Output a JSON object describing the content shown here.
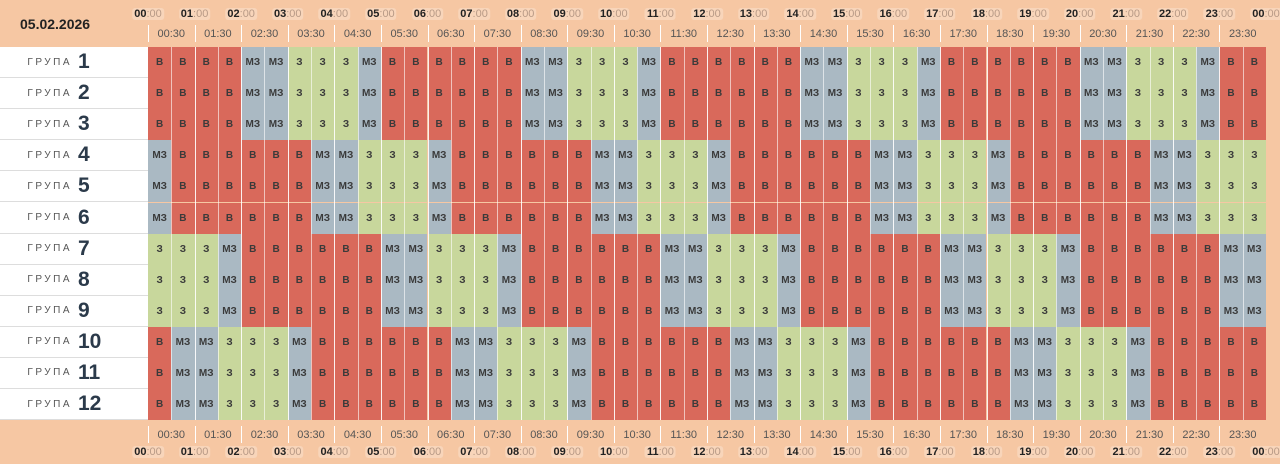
{
  "date": "05.02.2026",
  "group_word": "ГРУПА",
  "groups": [
    "1",
    "2",
    "3",
    "4",
    "5",
    "6",
    "7",
    "8",
    "9",
    "10",
    "11",
    "12"
  ],
  "hours": [
    "00",
    "01",
    "02",
    "03",
    "04",
    "05",
    "06",
    "07",
    "08",
    "09",
    "10",
    "11",
    "12",
    "13",
    "14",
    "15",
    "16",
    "17",
    "18",
    "19",
    "20",
    "21",
    "22",
    "23",
    "00"
  ],
  "minutes_suffix": ":00",
  "half_hours": [
    "00:30",
    "01:30",
    "02:30",
    "03:30",
    "04:30",
    "05:30",
    "06:30",
    "07:30",
    "08:30",
    "09:30",
    "10:30",
    "11:30",
    "12:30",
    "13:30",
    "14:30",
    "15:30",
    "16:30",
    "17:30",
    "18:30",
    "19:30",
    "20:30",
    "21:30",
    "22:30",
    "23:30"
  ],
  "colors": {
    "В": "#d9695b",
    "МЗ": "#aab9c3",
    "З": "#c8d79c",
    "background": "#f6c7a3"
  },
  "schedule": [
    [
      "В",
      "В",
      "В",
      "В",
      "МЗ",
      "МЗ",
      "З",
      "З",
      "З",
      "МЗ",
      "В",
      "В",
      "В",
      "В",
      "В",
      "В",
      "МЗ",
      "МЗ",
      "З",
      "З",
      "З",
      "МЗ",
      "В",
      "В",
      "В",
      "В",
      "В",
      "В",
      "МЗ",
      "МЗ",
      "З",
      "З",
      "З",
      "МЗ",
      "В",
      "В",
      "В",
      "В",
      "В",
      "В",
      "МЗ",
      "МЗ",
      "З",
      "З",
      "З",
      "МЗ",
      "В",
      "В"
    ],
    [
      "В",
      "В",
      "В",
      "В",
      "МЗ",
      "МЗ",
      "З",
      "З",
      "З",
      "МЗ",
      "В",
      "В",
      "В",
      "В",
      "В",
      "В",
      "МЗ",
      "МЗ",
      "З",
      "З",
      "З",
      "МЗ",
      "В",
      "В",
      "В",
      "В",
      "В",
      "В",
      "МЗ",
      "МЗ",
      "З",
      "З",
      "З",
      "МЗ",
      "В",
      "В",
      "В",
      "В",
      "В",
      "В",
      "МЗ",
      "МЗ",
      "З",
      "З",
      "З",
      "МЗ",
      "В",
      "В"
    ],
    [
      "В",
      "В",
      "В",
      "В",
      "МЗ",
      "МЗ",
      "З",
      "З",
      "З",
      "МЗ",
      "В",
      "В",
      "В",
      "В",
      "В",
      "В",
      "МЗ",
      "МЗ",
      "З",
      "З",
      "З",
      "МЗ",
      "В",
      "В",
      "В",
      "В",
      "В",
      "В",
      "МЗ",
      "МЗ",
      "З",
      "З",
      "З",
      "МЗ",
      "В",
      "В",
      "В",
      "В",
      "В",
      "В",
      "МЗ",
      "МЗ",
      "З",
      "З",
      "З",
      "МЗ",
      "В",
      "В"
    ],
    [
      "МЗ",
      "В",
      "В",
      "В",
      "В",
      "В",
      "В",
      "МЗ",
      "МЗ",
      "З",
      "З",
      "З",
      "МЗ",
      "В",
      "В",
      "В",
      "В",
      "В",
      "В",
      "МЗ",
      "МЗ",
      "З",
      "З",
      "З",
      "МЗ",
      "В",
      "В",
      "В",
      "В",
      "В",
      "В",
      "МЗ",
      "МЗ",
      "З",
      "З",
      "З",
      "МЗ",
      "В",
      "В",
      "В",
      "В",
      "В",
      "В",
      "МЗ",
      "МЗ",
      "З",
      "З",
      "З"
    ],
    [
      "МЗ",
      "В",
      "В",
      "В",
      "В",
      "В",
      "В",
      "МЗ",
      "МЗ",
      "З",
      "З",
      "З",
      "МЗ",
      "В",
      "В",
      "В",
      "В",
      "В",
      "В",
      "МЗ",
      "МЗ",
      "З",
      "З",
      "З",
      "МЗ",
      "В",
      "В",
      "В",
      "В",
      "В",
      "В",
      "МЗ",
      "МЗ",
      "З",
      "З",
      "З",
      "МЗ",
      "В",
      "В",
      "В",
      "В",
      "В",
      "В",
      "МЗ",
      "МЗ",
      "З",
      "З",
      "З"
    ],
    [
      "МЗ",
      "В",
      "В",
      "В",
      "В",
      "В",
      "В",
      "МЗ",
      "МЗ",
      "З",
      "З",
      "З",
      "МЗ",
      "В",
      "В",
      "В",
      "В",
      "В",
      "В",
      "МЗ",
      "МЗ",
      "З",
      "З",
      "З",
      "МЗ",
      "В",
      "В",
      "В",
      "В",
      "В",
      "В",
      "МЗ",
      "МЗ",
      "З",
      "З",
      "З",
      "МЗ",
      "В",
      "В",
      "В",
      "В",
      "В",
      "В",
      "МЗ",
      "МЗ",
      "З",
      "З",
      "З"
    ],
    [
      "З",
      "З",
      "З",
      "МЗ",
      "В",
      "В",
      "В",
      "В",
      "В",
      "В",
      "МЗ",
      "МЗ",
      "З",
      "З",
      "З",
      "МЗ",
      "В",
      "В",
      "В",
      "В",
      "В",
      "В",
      "МЗ",
      "МЗ",
      "З",
      "З",
      "З",
      "МЗ",
      "В",
      "В",
      "В",
      "В",
      "В",
      "В",
      "МЗ",
      "МЗ",
      "З",
      "З",
      "З",
      "МЗ",
      "В",
      "В",
      "В",
      "В",
      "В",
      "В",
      "МЗ",
      "МЗ"
    ],
    [
      "З",
      "З",
      "З",
      "МЗ",
      "В",
      "В",
      "В",
      "В",
      "В",
      "В",
      "МЗ",
      "МЗ",
      "З",
      "З",
      "З",
      "МЗ",
      "В",
      "В",
      "В",
      "В",
      "В",
      "В",
      "МЗ",
      "МЗ",
      "З",
      "З",
      "З",
      "МЗ",
      "В",
      "В",
      "В",
      "В",
      "В",
      "В",
      "МЗ",
      "МЗ",
      "З",
      "З",
      "З",
      "МЗ",
      "В",
      "В",
      "В",
      "В",
      "В",
      "В",
      "МЗ",
      "МЗ"
    ],
    [
      "З",
      "З",
      "З",
      "МЗ",
      "В",
      "В",
      "В",
      "В",
      "В",
      "В",
      "МЗ",
      "МЗ",
      "З",
      "З",
      "З",
      "МЗ",
      "В",
      "В",
      "В",
      "В",
      "В",
      "В",
      "МЗ",
      "МЗ",
      "З",
      "З",
      "З",
      "МЗ",
      "В",
      "В",
      "В",
      "В",
      "В",
      "В",
      "МЗ",
      "МЗ",
      "З",
      "З",
      "З",
      "МЗ",
      "В",
      "В",
      "В",
      "В",
      "В",
      "В",
      "МЗ",
      "МЗ"
    ],
    [
      "В",
      "МЗ",
      "МЗ",
      "З",
      "З",
      "З",
      "МЗ",
      "В",
      "В",
      "В",
      "В",
      "В",
      "В",
      "МЗ",
      "МЗ",
      "З",
      "З",
      "З",
      "МЗ",
      "В",
      "В",
      "В",
      "В",
      "В",
      "В",
      "МЗ",
      "МЗ",
      "З",
      "З",
      "З",
      "МЗ",
      "В",
      "В",
      "В",
      "В",
      "В",
      "В",
      "МЗ",
      "МЗ",
      "З",
      "З",
      "З",
      "МЗ",
      "В",
      "В",
      "В",
      "В",
      "В"
    ],
    [
      "В",
      "МЗ",
      "МЗ",
      "З",
      "З",
      "З",
      "МЗ",
      "В",
      "В",
      "В",
      "В",
      "В",
      "В",
      "МЗ",
      "МЗ",
      "З",
      "З",
      "З",
      "МЗ",
      "В",
      "В",
      "В",
      "В",
      "В",
      "В",
      "МЗ",
      "МЗ",
      "З",
      "З",
      "З",
      "МЗ",
      "В",
      "В",
      "В",
      "В",
      "В",
      "В",
      "МЗ",
      "МЗ",
      "З",
      "З",
      "З",
      "МЗ",
      "В",
      "В",
      "В",
      "В",
      "В"
    ],
    [
      "В",
      "МЗ",
      "МЗ",
      "З",
      "З",
      "З",
      "МЗ",
      "В",
      "В",
      "В",
      "В",
      "В",
      "В",
      "МЗ",
      "МЗ",
      "З",
      "З",
      "З",
      "МЗ",
      "В",
      "В",
      "В",
      "В",
      "В",
      "В",
      "МЗ",
      "МЗ",
      "З",
      "З",
      "З",
      "МЗ",
      "В",
      "В",
      "В",
      "В",
      "В",
      "В",
      "МЗ",
      "МЗ",
      "З",
      "З",
      "З",
      "МЗ",
      "В",
      "В",
      "В",
      "В",
      "В"
    ]
  ]
}
